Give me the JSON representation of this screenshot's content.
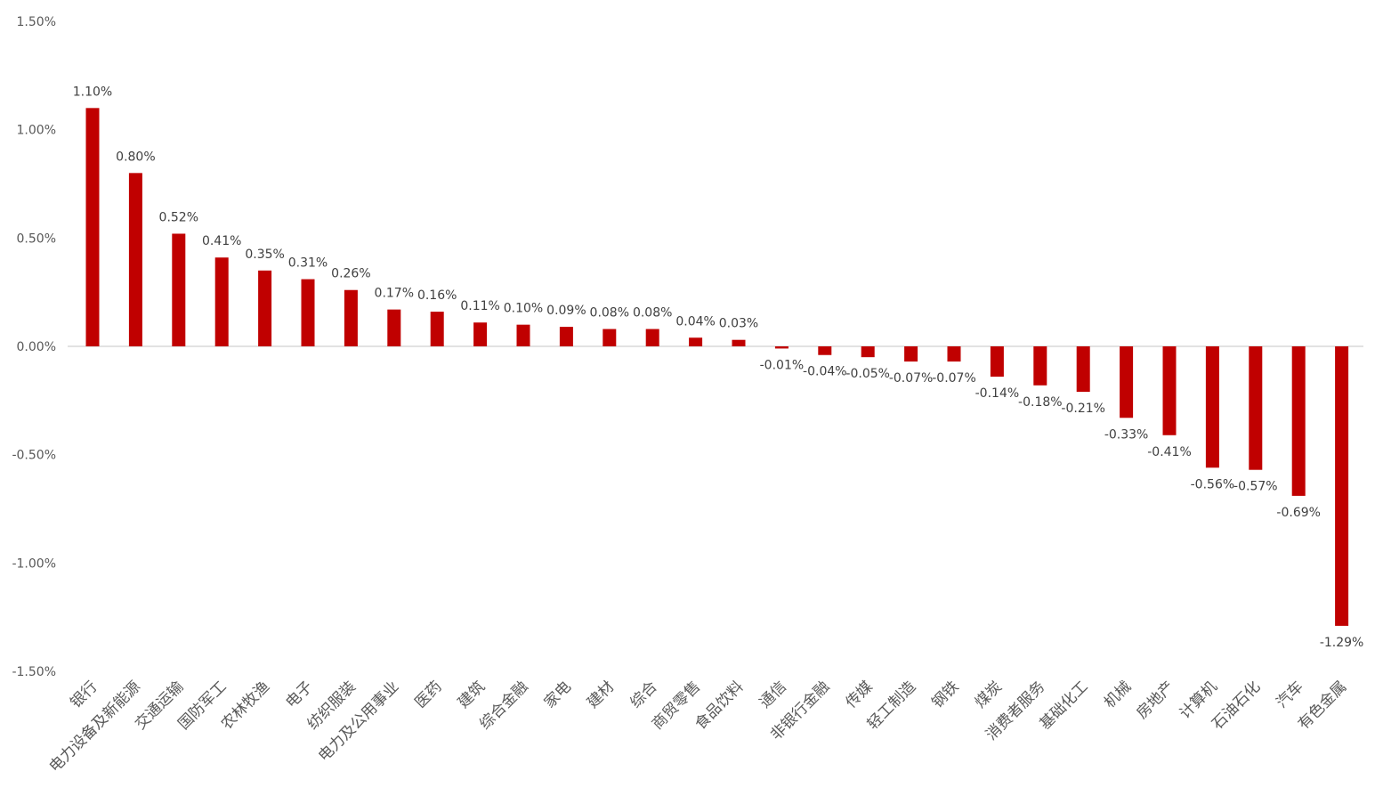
{
  "chart_data": {
    "type": "bar",
    "categories": [
      "银行",
      "电力设备及新能源",
      "交通运输",
      "国防军工",
      "农林牧渔",
      "电子",
      "纺织服装",
      "电力及公用事业",
      "医药",
      "建筑",
      "综合金融",
      "家电",
      "建材",
      "综合",
      "商贸零售",
      "食品饮料",
      "通信",
      "非银行金融",
      "传媒",
      "轻工制造",
      "钢铁",
      "煤炭",
      "消费者服务",
      "基础化工",
      "机械",
      "房地产",
      "计算机",
      "石油石化",
      "汽车",
      "有色金属"
    ],
    "values": [
      1.1,
      0.8,
      0.52,
      0.41,
      0.35,
      0.31,
      0.26,
      0.17,
      0.16,
      0.11,
      0.1,
      0.09,
      0.08,
      0.08,
      0.04,
      0.03,
      -0.01,
      -0.04,
      -0.05,
      -0.07,
      -0.07,
      -0.14,
      -0.18,
      -0.21,
      -0.33,
      -0.41,
      -0.56,
      -0.57,
      -0.69,
      -1.29
    ],
    "data_labels": [
      "1.10%",
      "0.80%",
      "0.52%",
      "0.41%",
      "0.35%",
      "0.31%",
      "0.26%",
      "0.17%",
      "0.16%",
      "0.11%",
      "0.10%",
      "0.09%",
      "0.08%",
      "0.08%",
      "0.04%",
      "0.03%",
      "-0.01%",
      "-0.04%",
      "-0.05%",
      "-0.07%",
      "-0.07%",
      "-0.14%",
      "-0.18%",
      "-0.21%",
      "-0.33%",
      "-0.41%",
      "-0.56%",
      "-0.57%",
      "-0.69%",
      "-1.29%"
    ],
    "yticks": [
      1.5,
      1.0,
      0.5,
      0.0,
      -0.5,
      -1.0,
      -1.5
    ],
    "ytick_labels": [
      "1.50%",
      "1.00%",
      "0.50%",
      "0.00%",
      "-0.50%",
      "-1.00%",
      "-1.50%"
    ],
    "ylim": [
      -1.5,
      1.5
    ],
    "title": "",
    "xlabel": "",
    "ylabel": "",
    "grid": false,
    "legend": "none",
    "bar_color": "#C00000",
    "axis_color": "#D9D9D9"
  }
}
